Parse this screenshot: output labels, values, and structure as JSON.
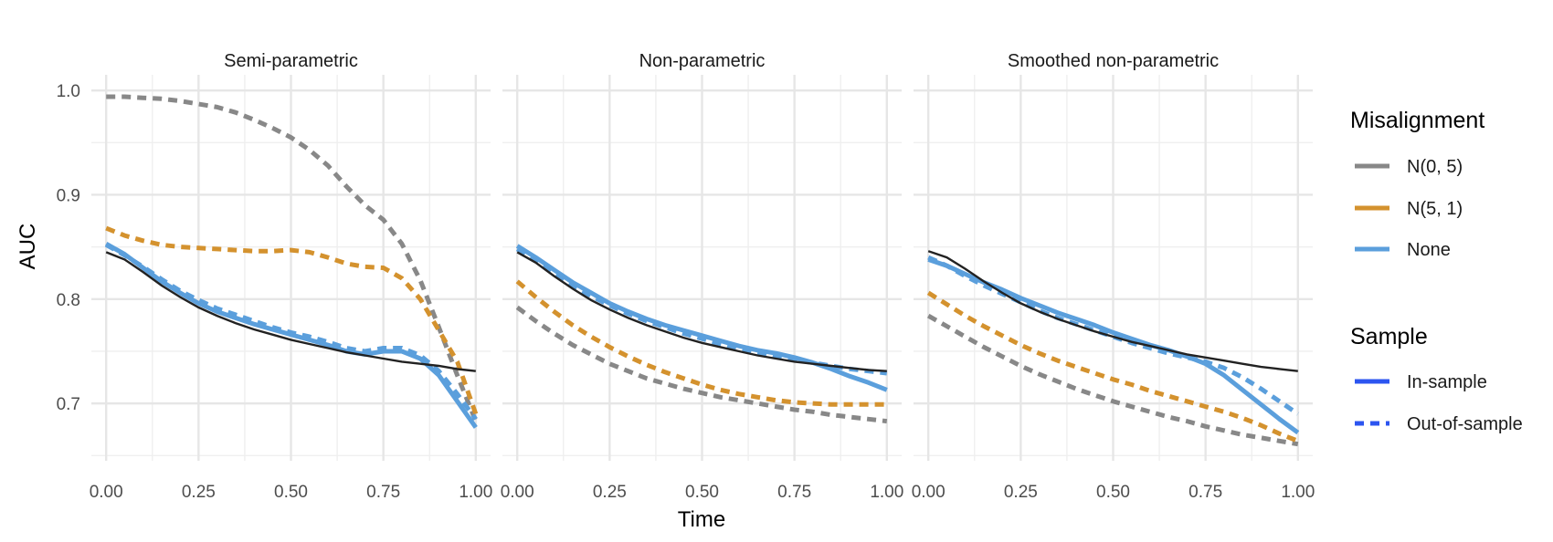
{
  "chart_data": {
    "type": "line",
    "xlabel": "Time",
    "ylabel": "AUC",
    "xlim": [
      -0.04,
      1.04
    ],
    "ylim": [
      0.645,
      1.015
    ],
    "x_ticks": [
      0,
      0.25,
      0.5,
      0.75,
      1.0
    ],
    "x_tick_labels": [
      "0.00",
      "0.25",
      "0.50",
      "0.75",
      "1.00"
    ],
    "y_ticks": [
      0.7,
      0.8,
      0.9,
      1.0
    ],
    "y_tick_labels": [
      "0.7",
      "0.8",
      "0.9",
      "1.0"
    ],
    "grid": true,
    "legend_placement": "right",
    "legend": {
      "misalignment": {
        "title": "Misalignment",
        "items": [
          {
            "label": "N(0, 5)",
            "color": "#888888"
          },
          {
            "label": "N(5, 1)",
            "color": "#d4922e"
          },
          {
            "label": "None",
            "color": "#5b9fdc"
          }
        ]
      },
      "sample": {
        "title": "Sample",
        "items": [
          {
            "label": "In-sample",
            "style": "solid",
            "color": "#2c55f0"
          },
          {
            "label": "Out-of-sample",
            "style": "dashed",
            "color": "#2c55f0"
          }
        ]
      }
    },
    "x": [
      0,
      0.05,
      0.1,
      0.15,
      0.2,
      0.25,
      0.3,
      0.35,
      0.4,
      0.45,
      0.5,
      0.55,
      0.6,
      0.65,
      0.7,
      0.75,
      0.8,
      0.85,
      0.9,
      0.95,
      1.0
    ],
    "panels": [
      {
        "title": "Semi-parametric",
        "reference": [
          0.845,
          0.838,
          0.826,
          0.813,
          0.802,
          0.792,
          0.784,
          0.777,
          0.771,
          0.766,
          0.761,
          0.757,
          0.753,
          0.749,
          0.746,
          0.743,
          0.74,
          0.738,
          0.736,
          0.733,
          0.731
        ],
        "series": [
          {
            "misalignment": "N(0, 5)",
            "sample": "Out-of-sample",
            "values": [
              0.994,
              0.994,
              0.993,
              0.992,
              0.99,
              0.987,
              0.984,
              0.979,
              0.972,
              0.964,
              0.955,
              0.943,
              0.928,
              0.908,
              0.89,
              0.876,
              0.853,
              0.818,
              0.773,
              0.727,
              0.683
            ]
          },
          {
            "misalignment": "N(5, 1)",
            "sample": "Out-of-sample",
            "values": [
              0.868,
              0.861,
              0.856,
              0.852,
              0.85,
              0.849,
              0.848,
              0.847,
              0.846,
              0.846,
              0.847,
              0.845,
              0.84,
              0.834,
              0.831,
              0.83,
              0.82,
              0.8,
              0.77,
              0.74,
              0.69
            ]
          },
          {
            "misalignment": "None",
            "sample": "In-sample",
            "values": [
              0.853,
              0.843,
              0.83,
              0.817,
              0.806,
              0.796,
              0.788,
              0.782,
              0.776,
              0.771,
              0.766,
              0.761,
              0.756,
              0.75,
              0.747,
              0.75,
              0.75,
              0.743,
              0.727,
              0.702,
              0.677
            ]
          },
          {
            "misalignment": "None",
            "sample": "Out-of-sample",
            "values": [
              0.852,
              0.842,
              0.831,
              0.819,
              0.808,
              0.799,
              0.791,
              0.785,
              0.779,
              0.773,
              0.768,
              0.764,
              0.759,
              0.753,
              0.75,
              0.753,
              0.753,
              0.746,
              0.731,
              0.709,
              0.685
            ]
          }
        ]
      },
      {
        "title": "Non-parametric",
        "reference": [
          0.845,
          0.835,
          0.822,
          0.81,
          0.799,
          0.79,
          0.782,
          0.775,
          0.769,
          0.763,
          0.758,
          0.754,
          0.75,
          0.746,
          0.743,
          0.74,
          0.738,
          0.736,
          0.734,
          0.732,
          0.731
        ],
        "series": [
          {
            "misalignment": "N(0, 5)",
            "sample": "Out-of-sample",
            "values": [
              0.792,
              0.779,
              0.767,
              0.756,
              0.747,
              0.738,
              0.731,
              0.724,
              0.719,
              0.714,
              0.71,
              0.706,
              0.703,
              0.7,
              0.697,
              0.694,
              0.692,
              0.689,
              0.687,
              0.685,
              0.683
            ]
          },
          {
            "misalignment": "N(5, 1)",
            "sample": "Out-of-sample",
            "values": [
              0.817,
              0.802,
              0.788,
              0.775,
              0.764,
              0.754,
              0.745,
              0.737,
              0.73,
              0.724,
              0.718,
              0.713,
              0.709,
              0.706,
              0.703,
              0.701,
              0.7,
              0.699,
              0.699,
              0.699,
              0.699
            ]
          },
          {
            "misalignment": "None",
            "sample": "In-sample",
            "values": [
              0.851,
              0.84,
              0.828,
              0.816,
              0.806,
              0.796,
              0.788,
              0.781,
              0.775,
              0.77,
              0.765,
              0.76,
              0.755,
              0.751,
              0.748,
              0.744,
              0.739,
              0.733,
              0.726,
              0.72,
              0.713
            ]
          },
          {
            "misalignment": "None",
            "sample": "Out-of-sample",
            "values": [
              0.848,
              0.837,
              0.825,
              0.813,
              0.803,
              0.794,
              0.786,
              0.779,
              0.773,
              0.767,
              0.762,
              0.757,
              0.752,
              0.748,
              0.745,
              0.742,
              0.739,
              0.736,
              0.733,
              0.731,
              0.729
            ]
          }
        ]
      },
      {
        "title": "Smoothed non-parametric",
        "reference": [
          0.846,
          0.84,
          0.829,
          0.817,
          0.806,
          0.796,
          0.788,
          0.781,
          0.775,
          0.769,
          0.764,
          0.759,
          0.755,
          0.751,
          0.747,
          0.744,
          0.741,
          0.738,
          0.735,
          0.733,
          0.731
        ],
        "series": [
          {
            "misalignment": "N(0, 5)",
            "sample": "Out-of-sample",
            "values": [
              0.784,
              0.774,
              0.764,
              0.754,
              0.745,
              0.736,
              0.728,
              0.721,
              0.714,
              0.708,
              0.702,
              0.697,
              0.692,
              0.687,
              0.683,
              0.678,
              0.674,
              0.67,
              0.667,
              0.664,
              0.661
            ]
          },
          {
            "misalignment": "N(5, 1)",
            "sample": "Out-of-sample",
            "values": [
              0.806,
              0.795,
              0.784,
              0.774,
              0.765,
              0.756,
              0.748,
              0.741,
              0.735,
              0.729,
              0.723,
              0.718,
              0.712,
              0.707,
              0.702,
              0.697,
              0.692,
              0.686,
              0.679,
              0.671,
              0.664
            ]
          },
          {
            "misalignment": "None",
            "sample": "In-sample",
            "values": [
              0.838,
              0.832,
              0.824,
              0.816,
              0.809,
              0.801,
              0.794,
              0.787,
              0.781,
              0.775,
              0.768,
              0.762,
              0.756,
              0.751,
              0.745,
              0.738,
              0.727,
              0.713,
              0.699,
              0.685,
              0.672
            ]
          },
          {
            "misalignment": "None",
            "sample": "Out-of-sample",
            "values": [
              0.84,
              0.832,
              0.822,
              0.813,
              0.805,
              0.797,
              0.789,
              0.782,
              0.776,
              0.77,
              0.764,
              0.758,
              0.753,
              0.748,
              0.744,
              0.74,
              0.734,
              0.725,
              0.714,
              0.702,
              0.69
            ]
          }
        ]
      }
    ]
  }
}
